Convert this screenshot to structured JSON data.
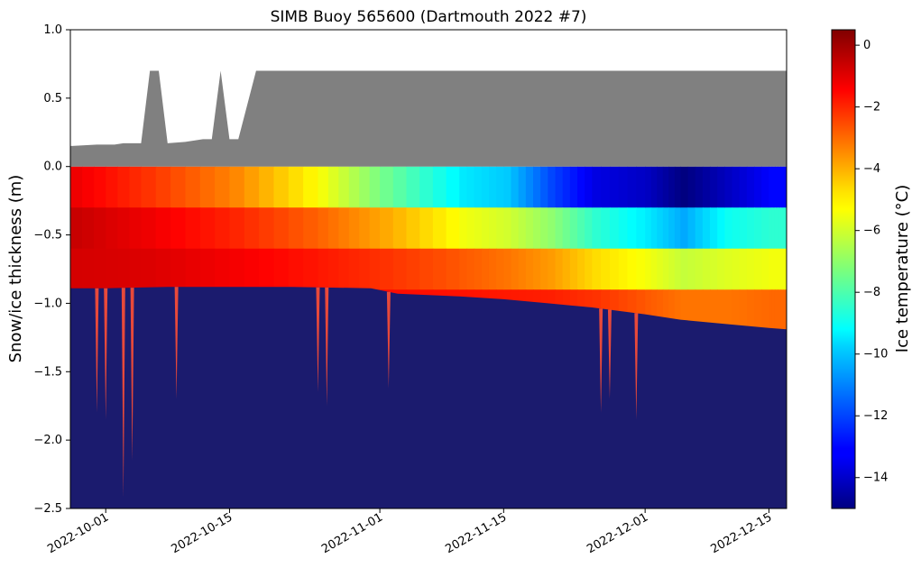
{
  "chart_data": {
    "type": "heatmap",
    "title": "SIMB Buoy 565600 (Dartmouth 2022 #7)",
    "ylabel": "Snow/ice thickness (m)",
    "xlabel": "",
    "xlim": [
      "2022-09-27",
      "2022-12-17"
    ],
    "ylim": [
      -2.5,
      1.0
    ],
    "x_ticks": [
      "2022-10-01",
      "2022-10-15",
      "2022-11-01",
      "2022-11-15",
      "2022-12-01",
      "2022-12-15"
    ],
    "y_ticks": [
      1.0,
      0.5,
      0.0,
      -0.5,
      -1.0,
      -1.5,
      -2.0,
      -2.5
    ],
    "grid": false,
    "colorbar": {
      "label": "Ice temperature (°C)",
      "range": [
        -15,
        0.5
      ],
      "ticks": [
        0,
        -2,
        -4,
        -6,
        -8,
        -10,
        -12,
        -14
      ],
      "colormap": "jet"
    },
    "colors": {
      "snow": "#808080",
      "water": "#1b1b6e",
      "warm": "#c90000",
      "cold": "#000080"
    },
    "series": [
      {
        "id": "snow-surface",
        "x": [
          "2022-09-27",
          "2022-09-30",
          "2022-10-02",
          "2022-10-03",
          "2022-10-05",
          "2022-10-06",
          "2022-10-07",
          "2022-10-08",
          "2022-10-10",
          "2022-10-12",
          "2022-10-13",
          "2022-10-14",
          "2022-10-15",
          "2022-10-16",
          "2022-10-18",
          "2022-11-01",
          "2022-12-01",
          "2022-12-17"
        ],
        "y": [
          0.15,
          0.16,
          0.16,
          0.17,
          0.17,
          0.7,
          0.7,
          0.17,
          0.18,
          0.2,
          0.2,
          0.7,
          0.2,
          0.2,
          0.7,
          0.7,
          0.7,
          0.7
        ]
      },
      {
        "id": "ice-bottom",
        "x": [
          "2022-09-27",
          "2022-10-01",
          "2022-10-08",
          "2022-10-15",
          "2022-10-22",
          "2022-10-31",
          "2022-11-03",
          "2022-11-10",
          "2022-11-15",
          "2022-11-20",
          "2022-11-25",
          "2022-12-01",
          "2022-12-05",
          "2022-12-10",
          "2022-12-15",
          "2022-12-17"
        ],
        "y": [
          -0.89,
          -0.89,
          -0.88,
          -0.88,
          -0.88,
          -0.89,
          -0.93,
          -0.95,
          -0.97,
          -1.0,
          -1.03,
          -1.08,
          -1.12,
          -1.15,
          -1.18,
          -1.19
        ]
      },
      {
        "id": "temperature-field",
        "depths_m": [
          0.0,
          -0.3,
          -0.6,
          -0.9,
          -1.2
        ],
        "x": [
          "2022-09-27",
          "2022-10-05",
          "2022-10-15",
          "2022-10-25",
          "2022-11-01",
          "2022-11-10",
          "2022-11-15",
          "2022-11-20",
          "2022-11-25",
          "2022-12-01",
          "2022-12-05",
          "2022-12-10",
          "2022-12-15"
        ],
        "values_c": [
          [
            -1.2,
            -0.6,
            -0.8,
            -1.3
          ],
          [
            -2.2,
            -1.2,
            -0.9,
            -1.3
          ],
          [
            -3.5,
            -2.0,
            -1.3,
            -1.4
          ],
          [
            -5.5,
            -3.0,
            -1.8,
            -1.5
          ],
          [
            -7.5,
            -4.0,
            -2.2,
            -1.6
          ],
          [
            -9.5,
            -5.5,
            -2.8,
            -1.7
          ],
          [
            -10.0,
            -6.0,
            -3.2,
            -1.8
          ],
          [
            -12.0,
            -7.0,
            -3.8,
            -1.9,
            -1.6
          ],
          [
            -13.5,
            -8.5,
            -4.8,
            -2.2,
            -1.7
          ],
          [
            -14.0,
            -9.5,
            -5.5,
            -2.8,
            -1.8
          ],
          [
            -15.0,
            -10.5,
            -6.2,
            -3.2,
            -1.9
          ],
          [
            -14.0,
            -9.0,
            -5.8,
            -3.2,
            -1.9
          ],
          [
            -13.0,
            -8.5,
            -5.5,
            -3.0,
            -1.8
          ]
        ]
      }
    ],
    "spikes": [
      {
        "date": "2022-09-30",
        "depth": -1.8
      },
      {
        "date": "2022-10-01",
        "depth": -1.85
      },
      {
        "date": "2022-10-03",
        "depth": -2.42
      },
      {
        "date": "2022-10-04",
        "depth": -2.15
      },
      {
        "date": "2022-10-09",
        "depth": -1.7
      },
      {
        "date": "2022-10-25",
        "depth": -1.65
      },
      {
        "date": "2022-10-26",
        "depth": -1.75
      },
      {
        "date": "2022-11-02",
        "depth": -1.62
      },
      {
        "date": "2022-11-26",
        "depth": -1.8
      },
      {
        "date": "2022-11-27",
        "depth": -1.7
      },
      {
        "date": "2022-11-30",
        "depth": -1.85
      }
    ]
  }
}
